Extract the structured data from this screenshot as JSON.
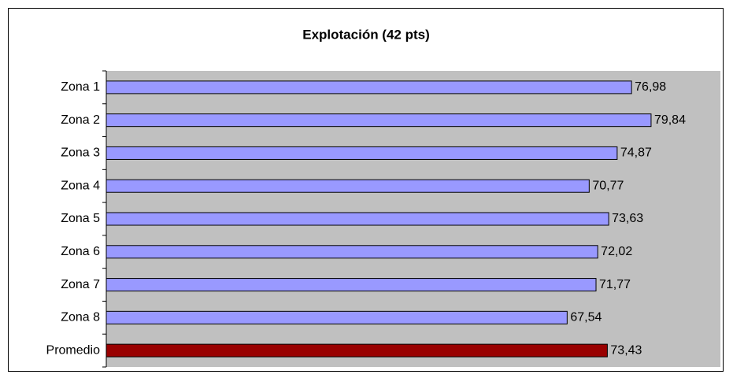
{
  "chart_data": {
    "type": "bar",
    "orientation": "horizontal",
    "title": "Explotación (42 pts)",
    "categories": [
      "Zona 1",
      "Zona 2",
      "Zona 3",
      "Zona 4",
      "Zona 5",
      "Zona 6",
      "Zona 7",
      "Zona 8",
      "Promedio"
    ],
    "values": [
      76.98,
      79.84,
      74.87,
      70.77,
      73.63,
      72.02,
      71.77,
      67.54,
      73.43
    ],
    "value_labels": [
      "76,98",
      "79,84",
      "74,87",
      "70,77",
      "73,63",
      "72,02",
      "71,77",
      "67,54",
      "73,43"
    ],
    "colors": [
      "#9999ff",
      "#9999ff",
      "#9999ff",
      "#9999ff",
      "#9999ff",
      "#9999ff",
      "#9999ff",
      "#9999ff",
      "#990000"
    ],
    "xlim": [
      0,
      90
    ]
  }
}
